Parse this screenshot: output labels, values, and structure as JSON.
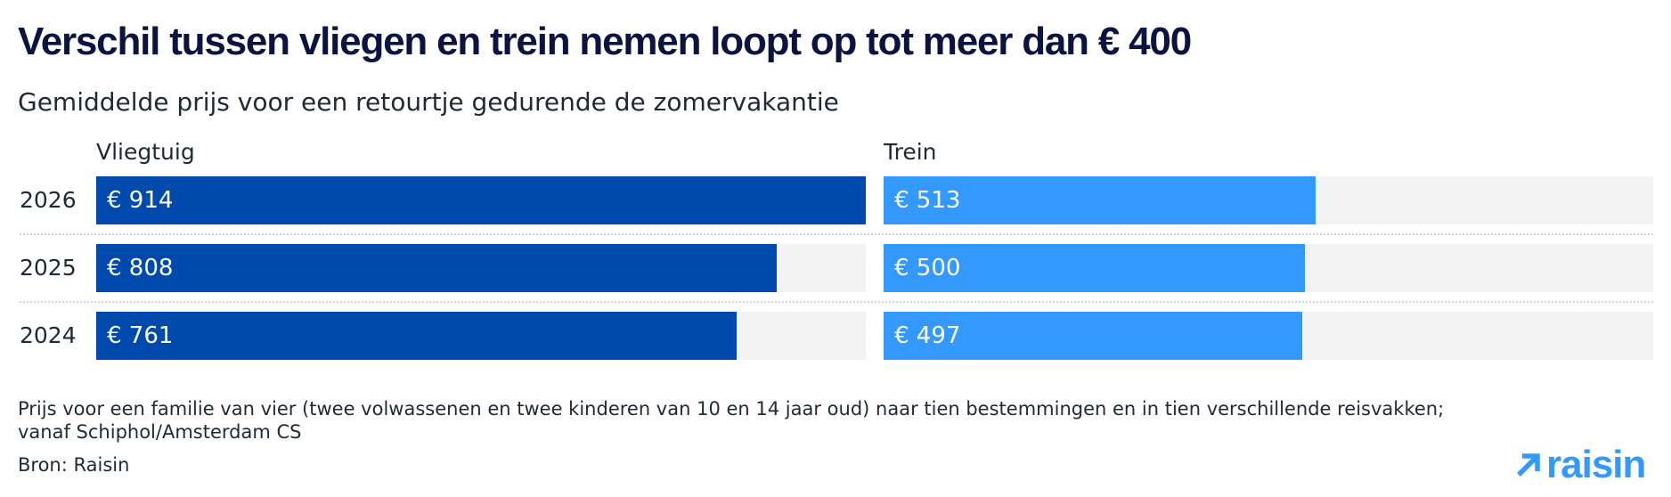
{
  "title": "Verschil tussen vliegen en trein nemen loopt op tot meer dan € 400",
  "subtitle": "Gemiddelde prijs voor een retourtje gedurende de zomervakantie",
  "footnote": "Prijs voor een familie van vier (twee volwassenen en twee kinderen van 10 en 14 jaar oud) naar tien bestemmingen en in tien verschillende reisvakken; vanaf Schiphol/Amsterdam CS",
  "source": "Bron: Raisin",
  "logo": {
    "text": "raisin",
    "icon": "arrow-up-right-icon",
    "color": "#3399ff"
  },
  "colors": {
    "vliegtuig": "#004aad",
    "trein": "#3399ff",
    "track": "#f3f3f3"
  },
  "chart_data": {
    "type": "bar",
    "orientation": "horizontal",
    "categories": [
      "2026",
      "2025",
      "2024"
    ],
    "series": [
      {
        "name": "Vliegtuig",
        "values": [
          914,
          808,
          761
        ],
        "labels": [
          "€ 914",
          "€ 808",
          "€ 761"
        ],
        "color": "#004aad"
      },
      {
        "name": "Trein",
        "values": [
          513,
          500,
          497
        ],
        "labels": [
          "€ 513",
          "€ 500",
          "€ 497"
        ],
        "color": "#3399ff"
      }
    ],
    "title": "Verschil tussen vliegen en trein nemen loopt op tot meer dan € 400",
    "subtitle": "Gemiddelde prijs voor een retourtje gedurende de zomervakantie",
    "xlim": [
      0,
      914
    ],
    "grid": false,
    "legend": "none"
  }
}
